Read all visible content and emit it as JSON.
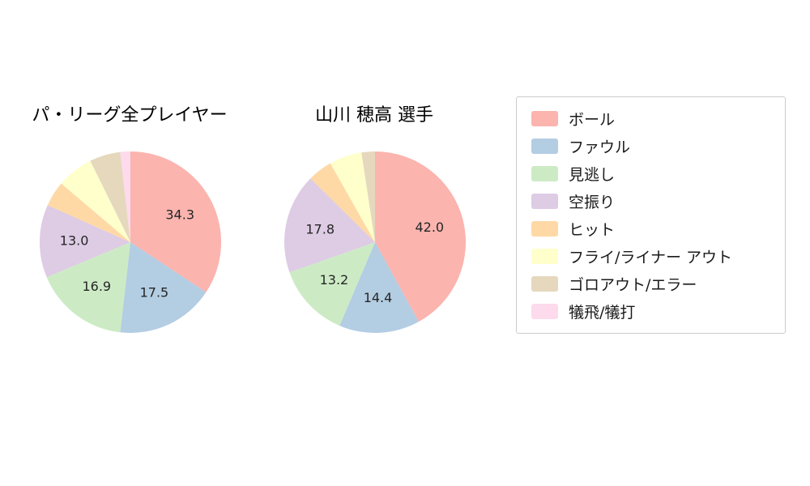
{
  "page": {
    "background": "#ffffff"
  },
  "legend": {
    "items": [
      {
        "id": "ball",
        "label": "ボール",
        "color": "#fbb4ae"
      },
      {
        "id": "foul",
        "label": "ファウル",
        "color": "#b3cde3"
      },
      {
        "id": "called-strike",
        "label": "見逃し",
        "color": "#ccebc5"
      },
      {
        "id": "swinging-strike",
        "label": "空振り",
        "color": "#decbe4"
      },
      {
        "id": "hit",
        "label": "ヒット",
        "color": "#fed9a6"
      },
      {
        "id": "fly-liner-out",
        "label": "フライ/ライナー アウト",
        "color": "#ffffcc"
      },
      {
        "id": "groundout-error",
        "label": "ゴロアウト/エラー",
        "color": "#e5d8bd"
      },
      {
        "id": "sacrifice",
        "label": "犠飛/犠打",
        "color": "#fddaec"
      }
    ]
  },
  "chart_data": [
    {
      "type": "pie",
      "title": "パ・リーグ全プレイヤー",
      "start_angle_deg": 90,
      "direction": "clockwise",
      "label_threshold": 10,
      "label_radius_fraction": 0.62,
      "slices": [
        {
          "id": "ball",
          "label": "ボール",
          "value": 34.3,
          "color": "#fbb4ae"
        },
        {
          "id": "foul",
          "label": "ファウル",
          "value": 17.5,
          "color": "#b3cde3"
        },
        {
          "id": "called-strike",
          "label": "見逃し",
          "value": 16.9,
          "color": "#ccebc5"
        },
        {
          "id": "swinging-strike",
          "label": "空振り",
          "value": 13.0,
          "color": "#decbe4"
        },
        {
          "id": "hit",
          "label": "ヒット",
          "value": 4.5,
          "color": "#fed9a6"
        },
        {
          "id": "fly-liner-out",
          "label": "フライ/ライナー アウト",
          "value": 6.5,
          "color": "#ffffcc"
        },
        {
          "id": "groundout-error",
          "label": "ゴロアウト/エラー",
          "value": 5.5,
          "color": "#e5d8bd"
        },
        {
          "id": "sacrifice",
          "label": "犠飛/犠打",
          "value": 1.8,
          "color": "#fddaec"
        }
      ]
    },
    {
      "type": "pie",
      "title": "山川 穂高  選手",
      "start_angle_deg": 90,
      "direction": "clockwise",
      "label_threshold": 10,
      "label_radius_fraction": 0.62,
      "slices": [
        {
          "id": "ball",
          "label": "ボール",
          "value": 42.0,
          "color": "#fbb4ae"
        },
        {
          "id": "foul",
          "label": "ファウル",
          "value": 14.4,
          "color": "#b3cde3"
        },
        {
          "id": "called-strike",
          "label": "見逃し",
          "value": 13.2,
          "color": "#ccebc5"
        },
        {
          "id": "swinging-strike",
          "label": "空振り",
          "value": 17.8,
          "color": "#decbe4"
        },
        {
          "id": "hit",
          "label": "ヒット",
          "value": 4.4,
          "color": "#fed9a6"
        },
        {
          "id": "fly-liner-out",
          "label": "フライ/ライナー アウト",
          "value": 5.8,
          "color": "#ffffcc"
        },
        {
          "id": "groundout-error",
          "label": "ゴロアウト/エラー",
          "value": 2.4,
          "color": "#e5d8bd"
        },
        {
          "id": "sacrifice",
          "label": "犠飛/犠打",
          "value": 0.0,
          "color": "#fddaec"
        }
      ]
    }
  ]
}
